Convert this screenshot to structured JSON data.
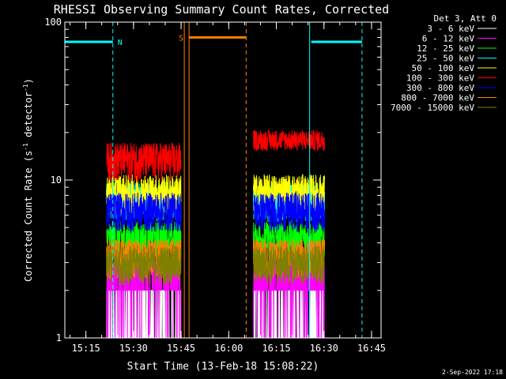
{
  "chart_data": {
    "type": "line",
    "title": "RHESSI Observing Summary Count Rates, Corrected",
    "xlabel": "Start Time (13-Feb-18 15:08:22)",
    "ylabel_main": "Corrected Count Rate (s",
    "ylabel_sup1": "-1",
    "ylabel_mid": " detector",
    "ylabel_sup2": "-1",
    "ylabel_end": ")",
    "yscale": "log",
    "ylim": [
      1,
      100
    ],
    "yticks": [
      {
        "value": 1,
        "label": "1"
      },
      {
        "value": 10,
        "label": "10"
      },
      {
        "value": 100,
        "label": "100"
      }
    ],
    "xlim": [
      "15:08:22",
      "16:48:00"
    ],
    "xticks": [
      "15:15",
      "15:30",
      "15:45",
      "16:00",
      "16:15",
      "16:30",
      "16:45"
    ],
    "legend_title": "Det 3, Att 0",
    "legend_position": "right",
    "series": [
      {
        "name": "3 - 6 keV",
        "color": "#ffffff",
        "level": 1.0
      },
      {
        "name": "6 - 12 keV",
        "color": "#ff00ff",
        "level": 2.6
      },
      {
        "name": "12 - 25 keV",
        "color": "#00ff00",
        "level": 4.3
      },
      {
        "name": "25 - 50 keV",
        "color": "#00ffff",
        "level": 7.5
      },
      {
        "name": "50 - 100 keV",
        "color": "#ffff00",
        "level": 8.5
      },
      {
        "name": "100 - 300 keV",
        "color": "#ff0000",
        "level": 13.5
      },
      {
        "name": "300 - 800 keV",
        "color": "#0000ff",
        "level": 6.5
      },
      {
        "name": "800 - 7000 keV",
        "color": "#ff8000",
        "level": 3.3
      },
      {
        "name": "7000 - 15000 keV",
        "color": "#808000",
        "level": 3.0
      }
    ],
    "data_segments": [
      {
        "start": "15:21:30",
        "end": "15:45:00"
      },
      {
        "start": "16:07:45",
        "end": "16:30:15"
      }
    ],
    "flags": [
      {
        "label": "N",
        "color": "#00ffff",
        "start": "15:08:22",
        "end": "15:23:30",
        "at": 75
      },
      {
        "label": "",
        "color": "#00ffff",
        "start": "16:26:00",
        "end": "16:42:00",
        "at": 75
      },
      {
        "label": "S",
        "color": "#ff8000",
        "start": "15:47:30",
        "end": "16:05:30",
        "at": 80
      }
    ],
    "vlines": [
      {
        "time": "15:08:22",
        "color": "#00ffff",
        "style": "solid"
      },
      {
        "time": "15:23:30",
        "color": "#00ffff",
        "style": "dashed"
      },
      {
        "time": "15:46:00",
        "color": "#ff8000",
        "style": "solid"
      },
      {
        "time": "15:47:30",
        "color": "#ff8000",
        "style": "solid"
      },
      {
        "time": "16:05:30",
        "color": "#ff8000",
        "style": "dashed"
      },
      {
        "time": "16:25:30",
        "color": "#00ffff",
        "style": "solid"
      },
      {
        "time": "16:42:00",
        "color": "#00ffff",
        "style": "dashed"
      }
    ]
  },
  "footer": {
    "date_stamp": "2-Sep-2022 17:18"
  }
}
